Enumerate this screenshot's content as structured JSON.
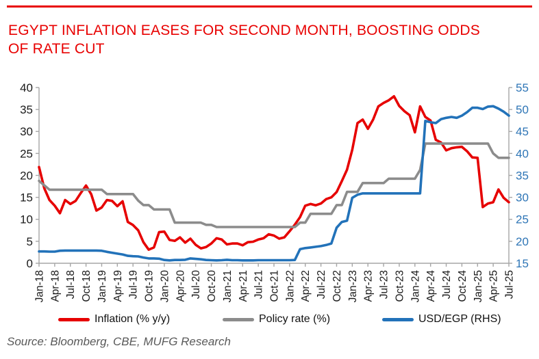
{
  "page": {
    "title_line1": "EGYPT INFLATION EASES FOR SECOND MONTH, BOOSTING ODDS",
    "title_line2": "OF RATE CUT",
    "source": "Source: Bloomberg, CBE, MUFG Research"
  },
  "colors": {
    "accent_red": "#e80000",
    "series_red": "#e60000",
    "policy_gray": "#8c8c8c",
    "egp_blue": "#2272b9",
    "axis_line_gray": "#a6a6a6",
    "axis_text_black": "#1a1a1a",
    "right_axis_text_blue": "#2e75b6",
    "source_text_gray": "#595959"
  },
  "chart_data": {
    "type": "line",
    "title": "EGYPT INFLATION EASES FOR SECOND MONTH, BOOSTING ODDS OF RATE CUT",
    "frequency": "monthly",
    "start": "Jan-18",
    "end": "Jul-25",
    "grid": false,
    "legend_position": "bottom",
    "left_axis": {
      "min": 0,
      "max": 40,
      "tick_step": 5
    },
    "right_axis": {
      "min": 15,
      "max": 55,
      "tick_step": 5
    },
    "x_tick_labels": [
      "Jan-18",
      "Apr-18",
      "Jul-18",
      "Oct-18",
      "Jan-19",
      "Apr-19",
      "Jul-19",
      "Oct-19",
      "Jan-20",
      "Apr-20",
      "Jul-20",
      "Oct-20",
      "Jan-21",
      "Apr-21",
      "Jul-21",
      "Oct-21",
      "Jan-22",
      "Apr-22",
      "Jul-22",
      "Oct-22",
      "Jan-23",
      "Apr-23",
      "Jul-23",
      "Oct-23",
      "Jan-24",
      "Apr-24",
      "Jul-24",
      "Oct-24",
      "Jan-25",
      "Apr-25",
      "Jul-25"
    ],
    "x_tick_every_n_months": 3,
    "series": [
      {
        "id": "inflation",
        "name": "Inflation (% y/y)",
        "color": "#e60000",
        "axis": "left",
        "values": [
          21.9,
          17.1,
          14.4,
          13.1,
          11.4,
          14.4,
          13.5,
          14.2,
          16.0,
          17.7,
          15.7,
          12.0,
          12.7,
          14.4,
          14.2,
          13.0,
          14.1,
          9.4,
          8.7,
          7.5,
          4.8,
          3.1,
          3.6,
          7.1,
          7.2,
          5.3,
          5.1,
          5.9,
          4.7,
          5.6,
          4.2,
          3.4,
          3.7,
          4.5,
          5.7,
          5.4,
          4.3,
          4.5,
          4.5,
          4.1,
          4.8,
          4.9,
          5.4,
          5.7,
          6.6,
          6.3,
          5.6,
          5.9,
          7.3,
          8.8,
          10.5,
          13.1,
          13.5,
          13.2,
          13.6,
          14.6,
          15.0,
          16.2,
          18.7,
          21.3,
          25.8,
          31.9,
          32.7,
          30.6,
          32.7,
          35.7,
          36.5,
          37.1,
          38.0,
          35.8,
          34.6,
          33.7,
          29.8,
          35.7,
          33.3,
          32.5,
          28.1,
          27.5,
          25.7,
          26.2,
          26.4,
          26.5,
          25.5,
          24.1,
          24.0,
          12.8,
          13.6,
          13.9,
          16.8,
          14.9,
          13.9
        ]
      },
      {
        "id": "policy-rate",
        "name": "Policy rate (%)",
        "color": "#8c8c8c",
        "axis": "left",
        "values": [
          18.75,
          17.75,
          16.75,
          16.75,
          16.75,
          16.75,
          16.75,
          16.75,
          16.75,
          16.75,
          16.75,
          16.75,
          16.75,
          15.75,
          15.75,
          15.75,
          15.75,
          15.75,
          15.75,
          14.25,
          13.25,
          13.25,
          12.25,
          12.25,
          12.25,
          12.25,
          9.25,
          9.25,
          9.25,
          9.25,
          9.25,
          9.25,
          8.75,
          8.75,
          8.25,
          8.25,
          8.25,
          8.25,
          8.25,
          8.25,
          8.25,
          8.25,
          8.25,
          8.25,
          8.25,
          8.25,
          8.25,
          8.25,
          8.25,
          8.25,
          9.25,
          9.25,
          11.25,
          11.25,
          11.25,
          11.25,
          11.25,
          13.25,
          13.25,
          16.25,
          16.25,
          16.25,
          18.25,
          18.25,
          18.25,
          18.25,
          18.25,
          19.25,
          19.25,
          19.25,
          19.25,
          19.25,
          19.25,
          21.25,
          27.25,
          27.25,
          27.25,
          27.25,
          27.25,
          27.25,
          27.25,
          27.25,
          27.25,
          27.25,
          27.25,
          27.25,
          27.25,
          25.0,
          24.0,
          24.0,
          24.0
        ]
      },
      {
        "id": "usd-egp",
        "name": "USD/EGP (RHS)",
        "color": "#2272b9",
        "axis": "right",
        "values": [
          17.7,
          17.7,
          17.65,
          17.65,
          17.85,
          17.9,
          17.9,
          17.9,
          17.9,
          17.9,
          17.9,
          17.9,
          17.85,
          17.6,
          17.4,
          17.2,
          17.0,
          16.7,
          16.6,
          16.55,
          16.3,
          16.1,
          16.1,
          16.05,
          15.75,
          15.65,
          15.75,
          15.75,
          15.8,
          16.1,
          16.0,
          15.9,
          15.75,
          15.7,
          15.65,
          15.7,
          15.8,
          15.7,
          15.7,
          15.65,
          15.65,
          15.65,
          15.7,
          15.7,
          15.7,
          15.7,
          15.7,
          15.7,
          15.7,
          15.75,
          18.2,
          18.45,
          18.6,
          18.75,
          18.9,
          19.15,
          19.5,
          23.1,
          24.4,
          24.7,
          29.9,
          30.6,
          30.9,
          30.9,
          30.9,
          30.9,
          30.9,
          30.9,
          30.9,
          30.9,
          30.9,
          30.9,
          30.9,
          30.9,
          47.4,
          47.1,
          46.9,
          47.8,
          48.1,
          48.3,
          48.1,
          48.6,
          49.4,
          50.4,
          50.4,
          50.1,
          50.65,
          50.75,
          50.2,
          49.5,
          48.6
        ]
      }
    ]
  }
}
